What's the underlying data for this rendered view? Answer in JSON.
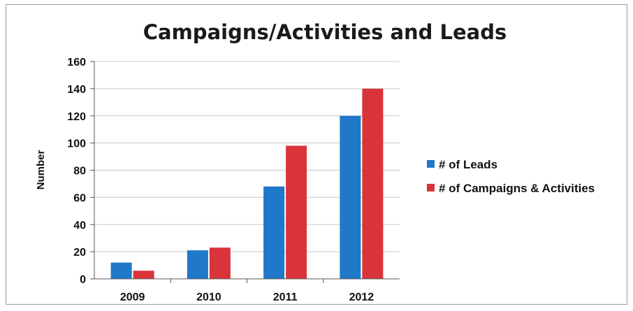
{
  "chart_data": {
    "type": "bar",
    "title": "Campaigns/Activities and Leads",
    "ylabel": "Number",
    "xlabel": "",
    "categories": [
      "2009",
      "2010",
      "2011",
      "2012"
    ],
    "series": [
      {
        "name": "# of Leads",
        "values": [
          12,
          21,
          68,
          120
        ],
        "color": "#1f78c8"
      },
      {
        "name": "# of Campaigns & Activities",
        "values": [
          6,
          23,
          98,
          140
        ],
        "color": "#d9343a"
      }
    ],
    "ylim": [
      0,
      160
    ],
    "yticks": [
      0,
      20,
      40,
      60,
      80,
      100,
      120,
      140,
      160
    ],
    "grid": true,
    "legend_position": "right"
  }
}
